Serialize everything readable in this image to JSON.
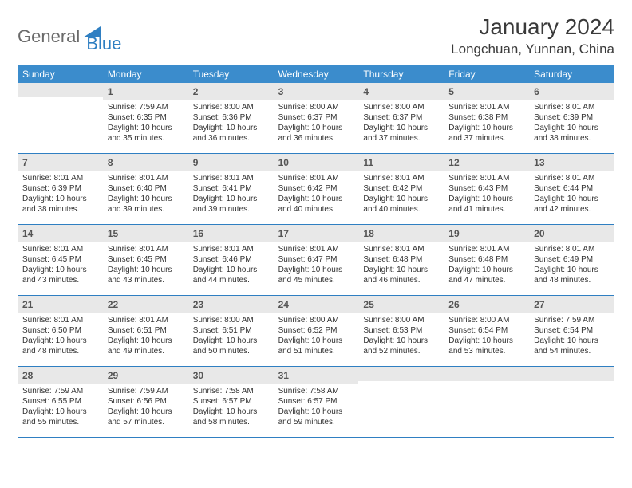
{
  "colors": {
    "header_bg": "#3b8ccc",
    "header_text": "#ffffff",
    "daynum_bg": "#e8e8e8",
    "daynum_text": "#555555",
    "border": "#2f7fc2",
    "logo_gray": "#6a6a6a",
    "logo_blue": "#2f7fc2",
    "body_text": "#333333",
    "background": "#ffffff"
  },
  "typography": {
    "title_fontsize": 28,
    "location_fontsize": 17,
    "day_header_fontsize": 12,
    "daynum_fontsize": 12,
    "details_fontsize": 10,
    "logo_fontsize": 22
  },
  "logo": {
    "part1": "General",
    "part2": "Blue"
  },
  "title": "January 2024",
  "location": "Longchuan, Yunnan, China",
  "day_names": [
    "Sunday",
    "Monday",
    "Tuesday",
    "Wednesday",
    "Thursday",
    "Friday",
    "Saturday"
  ],
  "weeks": [
    [
      null,
      {
        "n": "1",
        "sr": "Sunrise: 7:59 AM",
        "ss": "Sunset: 6:35 PM",
        "d1": "Daylight: 10 hours",
        "d2": "and 35 minutes."
      },
      {
        "n": "2",
        "sr": "Sunrise: 8:00 AM",
        "ss": "Sunset: 6:36 PM",
        "d1": "Daylight: 10 hours",
        "d2": "and 36 minutes."
      },
      {
        "n": "3",
        "sr": "Sunrise: 8:00 AM",
        "ss": "Sunset: 6:37 PM",
        "d1": "Daylight: 10 hours",
        "d2": "and 36 minutes."
      },
      {
        "n": "4",
        "sr": "Sunrise: 8:00 AM",
        "ss": "Sunset: 6:37 PM",
        "d1": "Daylight: 10 hours",
        "d2": "and 37 minutes."
      },
      {
        "n": "5",
        "sr": "Sunrise: 8:01 AM",
        "ss": "Sunset: 6:38 PM",
        "d1": "Daylight: 10 hours",
        "d2": "and 37 minutes."
      },
      {
        "n": "6",
        "sr": "Sunrise: 8:01 AM",
        "ss": "Sunset: 6:39 PM",
        "d1": "Daylight: 10 hours",
        "d2": "and 38 minutes."
      }
    ],
    [
      {
        "n": "7",
        "sr": "Sunrise: 8:01 AM",
        "ss": "Sunset: 6:39 PM",
        "d1": "Daylight: 10 hours",
        "d2": "and 38 minutes."
      },
      {
        "n": "8",
        "sr": "Sunrise: 8:01 AM",
        "ss": "Sunset: 6:40 PM",
        "d1": "Daylight: 10 hours",
        "d2": "and 39 minutes."
      },
      {
        "n": "9",
        "sr": "Sunrise: 8:01 AM",
        "ss": "Sunset: 6:41 PM",
        "d1": "Daylight: 10 hours",
        "d2": "and 39 minutes."
      },
      {
        "n": "10",
        "sr": "Sunrise: 8:01 AM",
        "ss": "Sunset: 6:42 PM",
        "d1": "Daylight: 10 hours",
        "d2": "and 40 minutes."
      },
      {
        "n": "11",
        "sr": "Sunrise: 8:01 AM",
        "ss": "Sunset: 6:42 PM",
        "d1": "Daylight: 10 hours",
        "d2": "and 40 minutes."
      },
      {
        "n": "12",
        "sr": "Sunrise: 8:01 AM",
        "ss": "Sunset: 6:43 PM",
        "d1": "Daylight: 10 hours",
        "d2": "and 41 minutes."
      },
      {
        "n": "13",
        "sr": "Sunrise: 8:01 AM",
        "ss": "Sunset: 6:44 PM",
        "d1": "Daylight: 10 hours",
        "d2": "and 42 minutes."
      }
    ],
    [
      {
        "n": "14",
        "sr": "Sunrise: 8:01 AM",
        "ss": "Sunset: 6:45 PM",
        "d1": "Daylight: 10 hours",
        "d2": "and 43 minutes."
      },
      {
        "n": "15",
        "sr": "Sunrise: 8:01 AM",
        "ss": "Sunset: 6:45 PM",
        "d1": "Daylight: 10 hours",
        "d2": "and 43 minutes."
      },
      {
        "n": "16",
        "sr": "Sunrise: 8:01 AM",
        "ss": "Sunset: 6:46 PM",
        "d1": "Daylight: 10 hours",
        "d2": "and 44 minutes."
      },
      {
        "n": "17",
        "sr": "Sunrise: 8:01 AM",
        "ss": "Sunset: 6:47 PM",
        "d1": "Daylight: 10 hours",
        "d2": "and 45 minutes."
      },
      {
        "n": "18",
        "sr": "Sunrise: 8:01 AM",
        "ss": "Sunset: 6:48 PM",
        "d1": "Daylight: 10 hours",
        "d2": "and 46 minutes."
      },
      {
        "n": "19",
        "sr": "Sunrise: 8:01 AM",
        "ss": "Sunset: 6:48 PM",
        "d1": "Daylight: 10 hours",
        "d2": "and 47 minutes."
      },
      {
        "n": "20",
        "sr": "Sunrise: 8:01 AM",
        "ss": "Sunset: 6:49 PM",
        "d1": "Daylight: 10 hours",
        "d2": "and 48 minutes."
      }
    ],
    [
      {
        "n": "21",
        "sr": "Sunrise: 8:01 AM",
        "ss": "Sunset: 6:50 PM",
        "d1": "Daylight: 10 hours",
        "d2": "and 48 minutes."
      },
      {
        "n": "22",
        "sr": "Sunrise: 8:01 AM",
        "ss": "Sunset: 6:51 PM",
        "d1": "Daylight: 10 hours",
        "d2": "and 49 minutes."
      },
      {
        "n": "23",
        "sr": "Sunrise: 8:00 AM",
        "ss": "Sunset: 6:51 PM",
        "d1": "Daylight: 10 hours",
        "d2": "and 50 minutes."
      },
      {
        "n": "24",
        "sr": "Sunrise: 8:00 AM",
        "ss": "Sunset: 6:52 PM",
        "d1": "Daylight: 10 hours",
        "d2": "and 51 minutes."
      },
      {
        "n": "25",
        "sr": "Sunrise: 8:00 AM",
        "ss": "Sunset: 6:53 PM",
        "d1": "Daylight: 10 hours",
        "d2": "and 52 minutes."
      },
      {
        "n": "26",
        "sr": "Sunrise: 8:00 AM",
        "ss": "Sunset: 6:54 PM",
        "d1": "Daylight: 10 hours",
        "d2": "and 53 minutes."
      },
      {
        "n": "27",
        "sr": "Sunrise: 7:59 AM",
        "ss": "Sunset: 6:54 PM",
        "d1": "Daylight: 10 hours",
        "d2": "and 54 minutes."
      }
    ],
    [
      {
        "n": "28",
        "sr": "Sunrise: 7:59 AM",
        "ss": "Sunset: 6:55 PM",
        "d1": "Daylight: 10 hours",
        "d2": "and 55 minutes."
      },
      {
        "n": "29",
        "sr": "Sunrise: 7:59 AM",
        "ss": "Sunset: 6:56 PM",
        "d1": "Daylight: 10 hours",
        "d2": "and 57 minutes."
      },
      {
        "n": "30",
        "sr": "Sunrise: 7:58 AM",
        "ss": "Sunset: 6:57 PM",
        "d1": "Daylight: 10 hours",
        "d2": "and 58 minutes."
      },
      {
        "n": "31",
        "sr": "Sunrise: 7:58 AM",
        "ss": "Sunset: 6:57 PM",
        "d1": "Daylight: 10 hours",
        "d2": "and 59 minutes."
      },
      null,
      null,
      null
    ]
  ]
}
